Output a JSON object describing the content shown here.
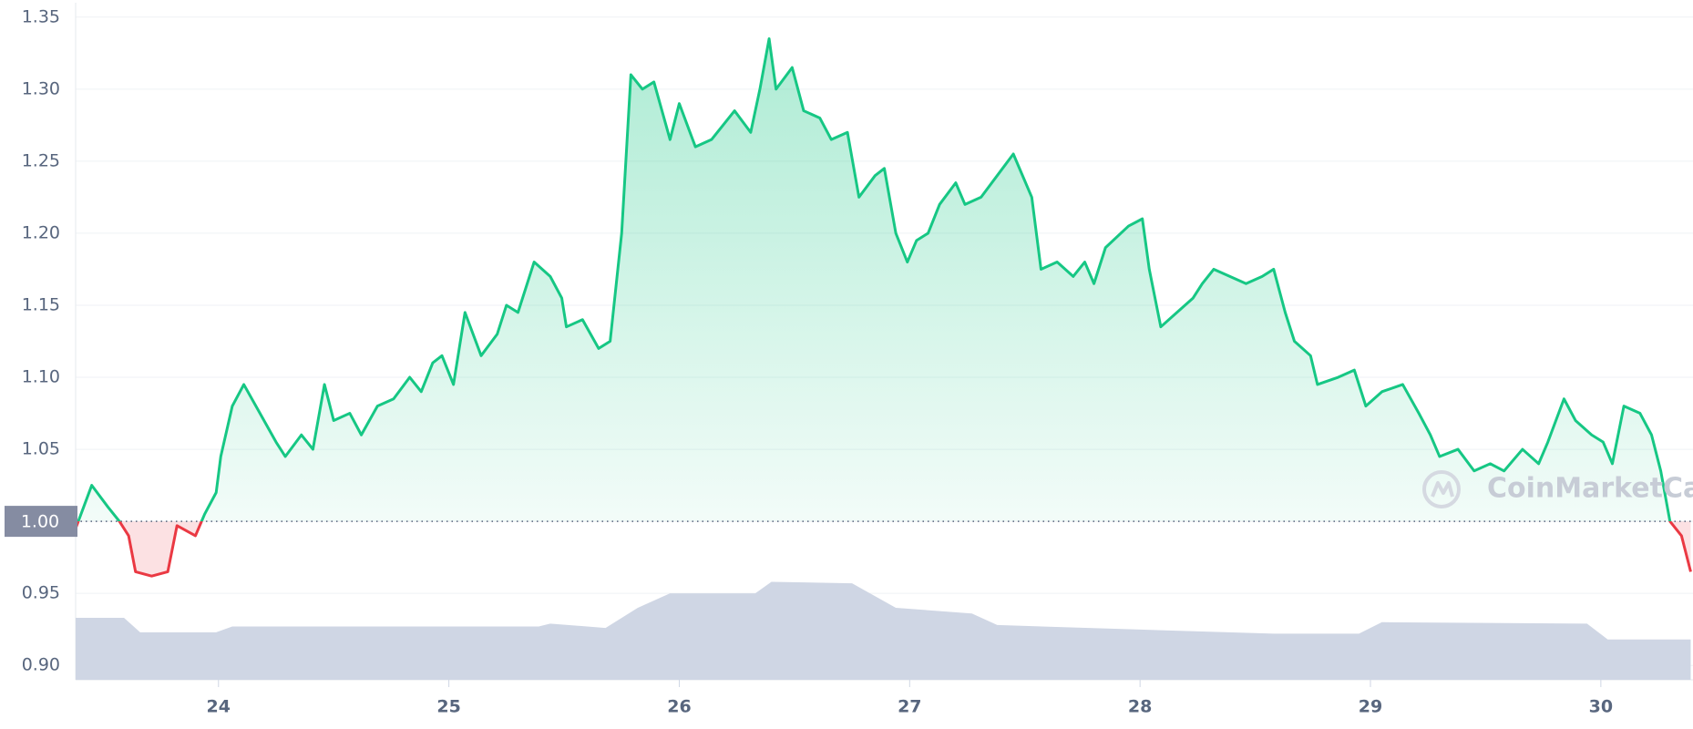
{
  "chart_data": {
    "type": "line",
    "xlim": [
      23.38,
      30.4
    ],
    "xticks": [
      24,
      25,
      26,
      27,
      28,
      29,
      30
    ],
    "ylim": [
      0.89,
      1.36
    ],
    "yticks": [
      {
        "value": 0.9,
        "label": "0.90"
      },
      0.95,
      {
        "value": 1.0,
        "label": "1.00"
      },
      1.05,
      {
        "value": 1.1,
        "label": "1.10"
      },
      1.15,
      {
        "value": 1.2,
        "label": "1.20"
      },
      1.25,
      {
        "value": 1.3,
        "label": "1.30"
      },
      1.35
    ],
    "baseline": {
      "value": 1.0,
      "label": "1.00"
    },
    "grid": true,
    "watermark": "CoinMarketCap",
    "series": [
      {
        "color": "#16c784",
        "below_color": "#ea3943",
        "x": [
          23.38,
          23.45,
          23.52,
          23.57,
          23.61,
          23.64,
          23.71,
          23.78,
          23.82,
          23.9,
          23.94,
          23.99,
          24.01,
          24.06,
          24.11,
          24.18,
          24.25,
          24.29,
          24.36,
          24.41,
          24.46,
          24.5,
          24.57,
          24.62,
          24.69,
          24.76,
          24.83,
          24.88,
          24.93,
          24.97,
          25.02,
          25.07,
          25.14,
          25.21,
          25.25,
          25.3,
          25.37,
          25.44,
          25.49,
          25.51,
          25.58,
          25.65,
          25.7,
          25.75,
          25.79,
          25.84,
          25.89,
          25.96,
          26.0,
          26.07,
          26.14,
          26.24,
          26.31,
          26.35,
          26.39,
          26.42,
          26.49,
          26.54,
          26.61,
          26.66,
          26.73,
          26.78,
          26.85,
          26.89,
          26.94,
          26.99,
          27.03,
          27.08,
          27.13,
          27.2,
          27.24,
          27.31,
          27.38,
          27.45,
          27.53,
          27.57,
          27.64,
          27.71,
          27.76,
          27.8,
          27.85,
          27.95,
          28.01,
          28.04,
          28.09,
          28.16,
          28.23,
          28.27,
          28.32,
          28.39,
          28.46,
          28.53,
          28.58,
          28.63,
          28.67,
          28.74,
          28.77,
          28.86,
          28.93,
          28.98,
          29.05,
          29.14,
          29.21,
          29.26,
          29.3,
          29.38,
          29.45,
          29.52,
          29.58,
          29.66,
          29.73,
          29.77,
          29.84,
          29.89,
          29.96,
          30.01,
          30.05,
          30.1,
          30.17,
          30.22,
          30.26,
          30.3,
          30.35,
          30.39
        ],
        "values": [
          0.995,
          1.025,
          1.01,
          1.0,
          0.99,
          0.965,
          0.962,
          0.965,
          0.997,
          0.99,
          1.005,
          1.02,
          1.045,
          1.08,
          1.095,
          1.075,
          1.055,
          1.045,
          1.06,
          1.05,
          1.095,
          1.07,
          1.075,
          1.06,
          1.08,
          1.085,
          1.1,
          1.09,
          1.11,
          1.115,
          1.095,
          1.145,
          1.115,
          1.13,
          1.15,
          1.145,
          1.18,
          1.17,
          1.155,
          1.135,
          1.14,
          1.12,
          1.125,
          1.2,
          1.31,
          1.3,
          1.305,
          1.265,
          1.29,
          1.26,
          1.265,
          1.285,
          1.27,
          1.3,
          1.335,
          1.3,
          1.315,
          1.285,
          1.28,
          1.265,
          1.27,
          1.225,
          1.24,
          1.245,
          1.2,
          1.18,
          1.195,
          1.2,
          1.22,
          1.235,
          1.22,
          1.225,
          1.24,
          1.255,
          1.225,
          1.175,
          1.18,
          1.17,
          1.18,
          1.165,
          1.19,
          1.205,
          1.21,
          1.175,
          1.135,
          1.145,
          1.155,
          1.165,
          1.175,
          1.17,
          1.165,
          1.17,
          1.175,
          1.145,
          1.125,
          1.115,
          1.095,
          1.1,
          1.105,
          1.08,
          1.09,
          1.095,
          1.075,
          1.06,
          1.045,
          1.05,
          1.035,
          1.04,
          1.035,
          1.05,
          1.04,
          1.055,
          1.085,
          1.07,
          1.06,
          1.055,
          1.04,
          1.08,
          1.075,
          1.06,
          1.035,
          1.0,
          0.99,
          0.965
        ]
      },
      {
        "color": "#cfd6e4",
        "x": [
          23.38,
          23.59,
          23.66,
          23.99,
          24.06,
          25.39,
          25.44,
          25.68,
          25.82,
          25.96,
          26.33,
          26.4,
          26.75,
          26.94,
          27.27,
          27.38,
          27.97,
          28.58,
          28.95,
          29.05,
          29.94,
          30.03,
          30.39
        ],
        "values": [
          0.933,
          0.933,
          0.923,
          0.923,
          0.927,
          0.927,
          0.929,
          0.926,
          0.94,
          0.95,
          0.95,
          0.958,
          0.957,
          0.94,
          0.936,
          0.928,
          0.925,
          0.922,
          0.922,
          0.93,
          0.929,
          0.918,
          0.918
        ]
      }
    ]
  }
}
